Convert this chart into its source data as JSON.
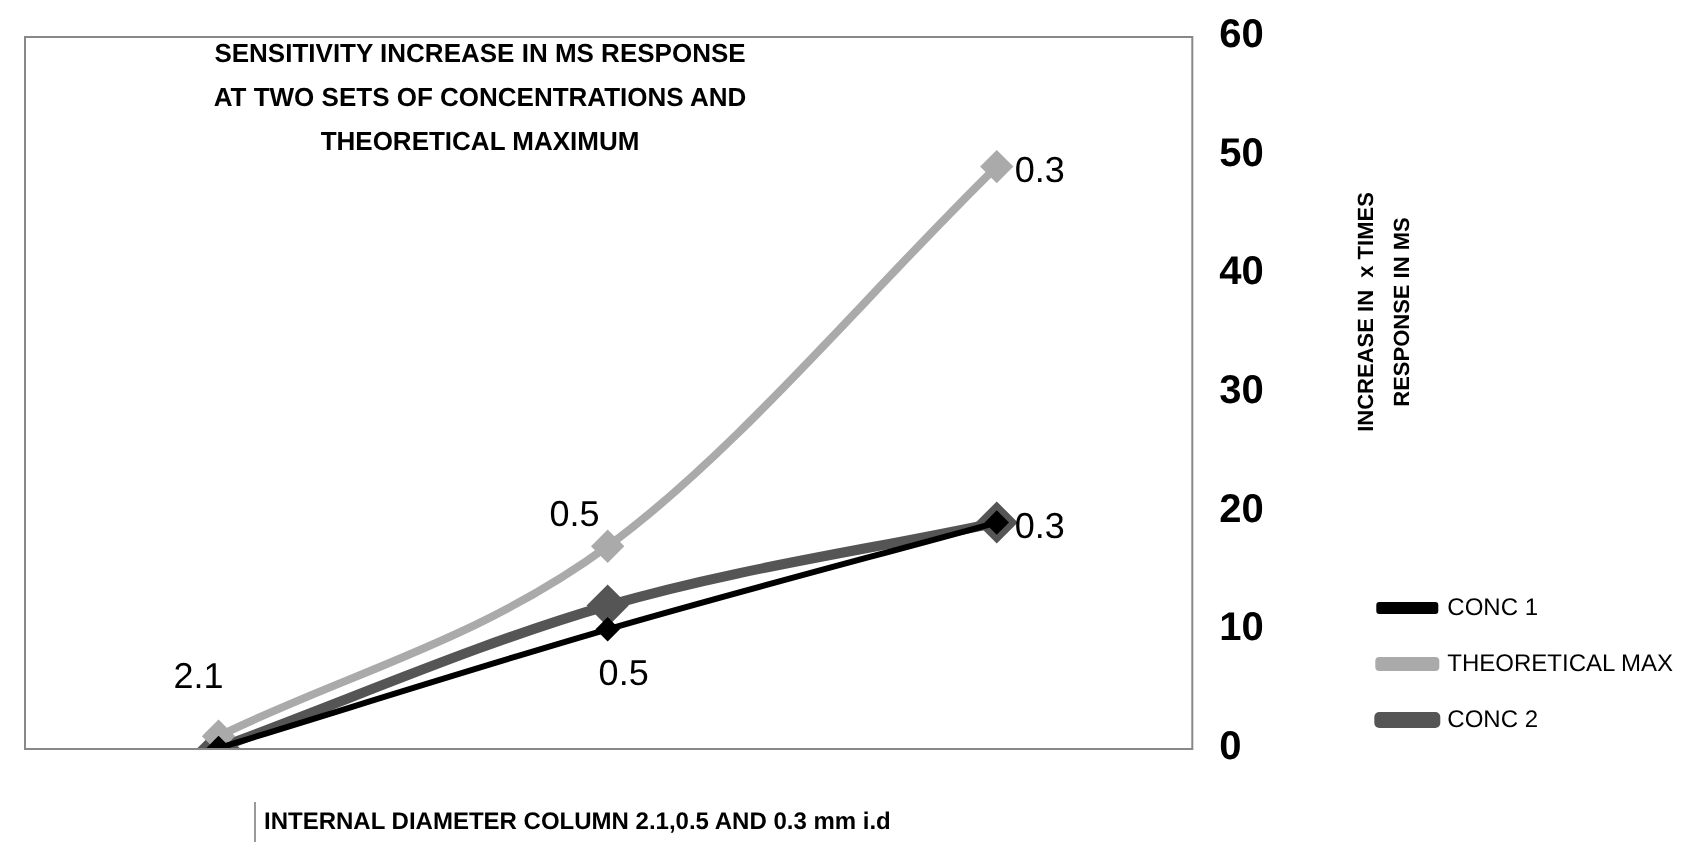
{
  "chart_data": {
    "type": "line",
    "title": "SENSITIVITY INCREASE IN MS RESPONSE\nAT TWO SETS OF CONCENTRATIONS AND\nTHEORETICAL MAXIMUM",
    "xlabel": "INTERNAL DIAMETER COLUMN 2.1,0.5 AND 0.3 mm i.d",
    "ylabel": "INCREASE IN  x TIMES\nRESPONSE IN MS",
    "categories": [
      null,
      null,
      null
    ],
    "series": [
      {
        "name": "CONC 1",
        "color": "#000000",
        "values": [
          0,
          10,
          19
        ]
      },
      {
        "name": "THEORETICAL MAX",
        "color": "#aaaaaa",
        "values": [
          1,
          17,
          49
        ]
      },
      {
        "name": "CONC 2",
        "color": "#555555",
        "values": [
          0,
          12,
          19
        ]
      }
    ],
    "ylim": [
      0,
      60
    ],
    "yticks": [
      0,
      10,
      20,
      30,
      40,
      50,
      60
    ],
    "grid": false,
    "legend": "bottom right",
    "marker": "diamond",
    "line_style": "solid",
    "annotations": [
      "2.1",
      "0.5",
      "0.5",
      "0.3",
      "0.3"
    ]
  }
}
